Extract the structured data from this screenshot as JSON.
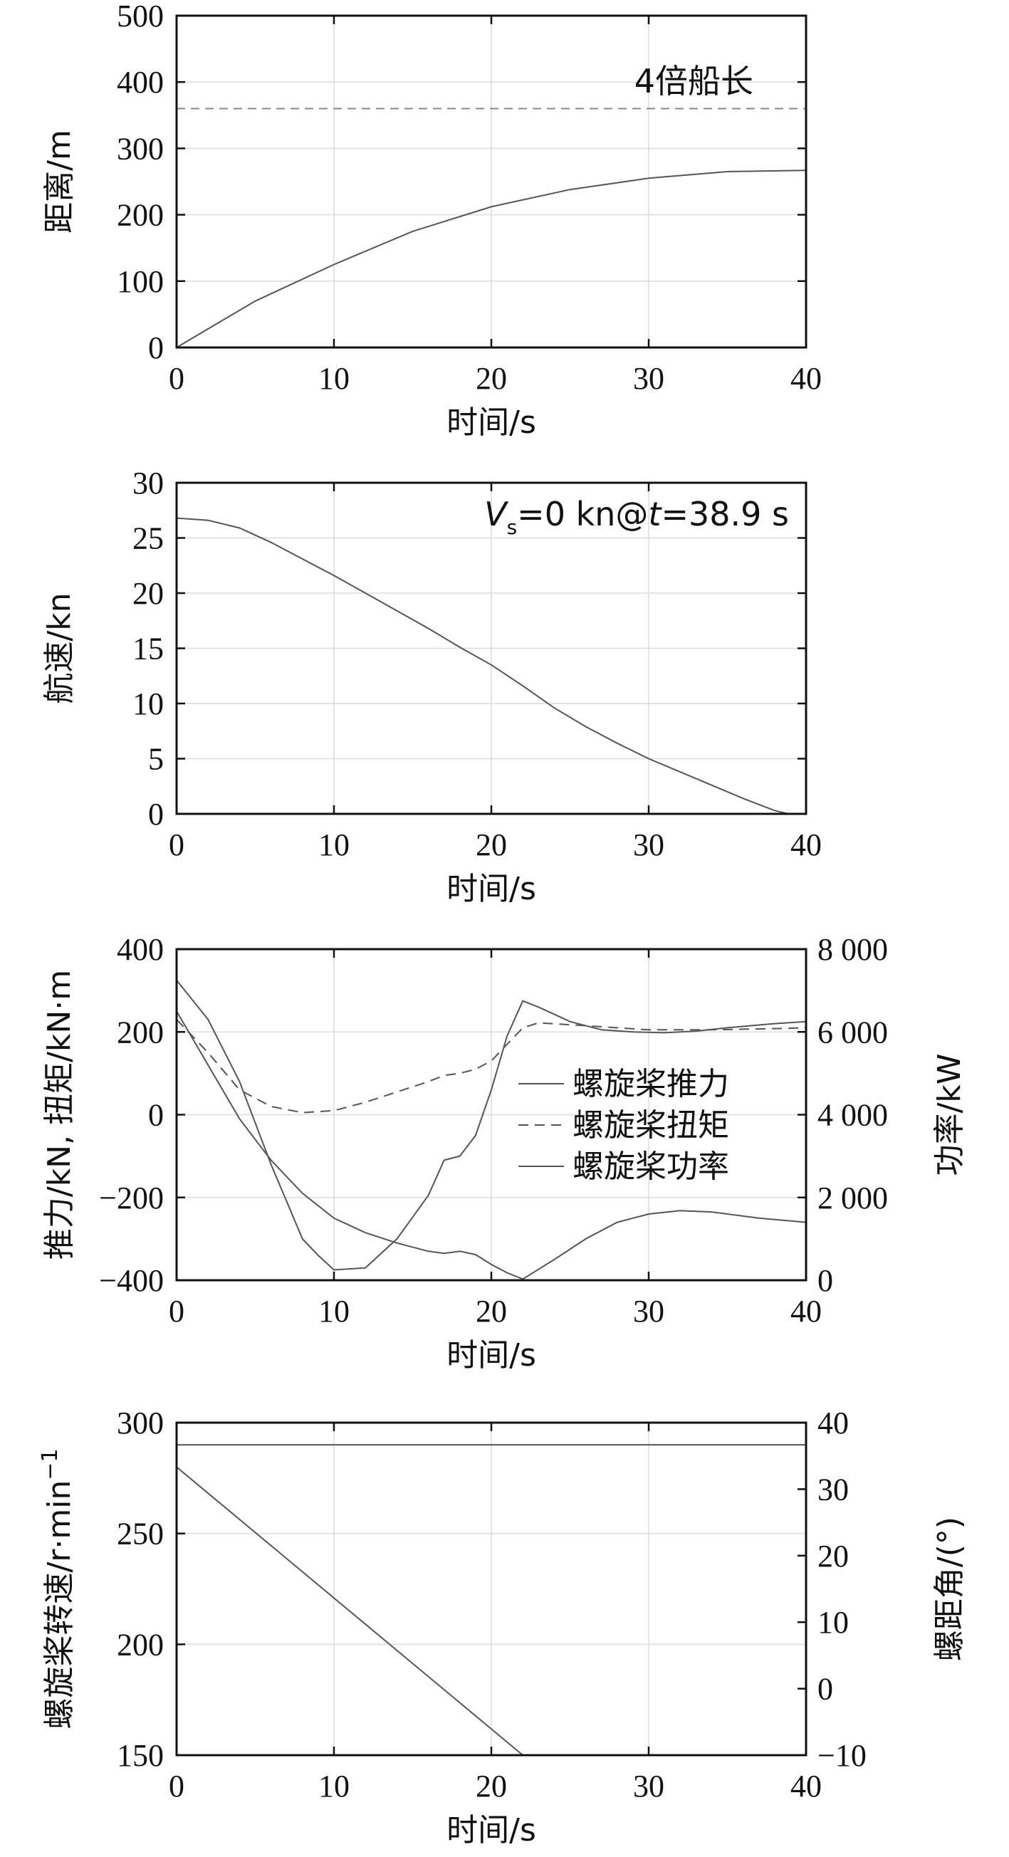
{
  "chart_data": [
    {
      "type": "line",
      "xlabel": "时间/s",
      "ylabel": "距离/m",
      "xlim": [
        0,
        40
      ],
      "ylim": [
        0,
        500
      ],
      "xticks": [
        0,
        10,
        20,
        30,
        40
      ],
      "yticks": [
        0,
        100,
        200,
        300,
        400,
        500
      ],
      "grid": true,
      "annotation": "4倍船长",
      "reference_line": {
        "y": 360,
        "style": "dashed"
      },
      "series": [
        {
          "style": "solid",
          "x": [
            0,
            5,
            10,
            15,
            20,
            25,
            30,
            35,
            40
          ],
          "y": [
            0,
            70,
            125,
            175,
            212,
            238,
            255,
            265,
            267
          ]
        }
      ]
    },
    {
      "type": "line",
      "xlabel": "时间/s",
      "ylabel": "航速/kn",
      "xlim": [
        0,
        40
      ],
      "ylim": [
        0,
        30
      ],
      "xticks": [
        0,
        10,
        20,
        30,
        40
      ],
      "yticks": [
        0,
        5,
        10,
        15,
        20,
        25,
        30
      ],
      "grid": true,
      "annotation": {
        "v": "V",
        "sub": "s",
        "rest1": "=0 kn@",
        "t": "t",
        "rest2": "=38.9 s"
      },
      "series": [
        {
          "style": "solid",
          "x": [
            0,
            2,
            4,
            6,
            8,
            10,
            12,
            14,
            16,
            18,
            20,
            22,
            24,
            26,
            28,
            30,
            32,
            34,
            36,
            38,
            38.9
          ],
          "y": [
            26.8,
            26.6,
            25.9,
            24.6,
            23.1,
            21.6,
            20.0,
            18.4,
            16.8,
            15.1,
            13.5,
            11.6,
            9.6,
            7.9,
            6.4,
            5.0,
            3.8,
            2.6,
            1.4,
            0.3,
            0
          ]
        }
      ]
    },
    {
      "type": "line",
      "xlabel": "时间/s",
      "ylabel": "推力/kN, 扭矩/kN·m",
      "y2label": "功率/kW",
      "xlim": [
        0,
        40
      ],
      "ylim": [
        -400,
        400
      ],
      "y2lim": [
        0,
        8000
      ],
      "xticks": [
        0,
        10,
        20,
        30,
        40
      ],
      "yticks": [
        -400,
        -200,
        0,
        200,
        400
      ],
      "yticklabels": [
        "−400",
        "−200",
        "0",
        "200",
        "400"
      ],
      "y2ticks": [
        0,
        2000,
        4000,
        6000,
        8000
      ],
      "y2ticklabels": [
        "0",
        "2 000",
        "4 000",
        "6 000",
        "8 000"
      ],
      "grid": true,
      "legend": "right",
      "series": [
        {
          "name": "螺旋桨推力",
          "axis": "left",
          "style": "solid",
          "x": [
            0,
            2,
            4,
            6,
            8,
            9,
            10,
            12,
            14,
            16,
            17,
            18,
            19,
            20,
            21,
            22,
            23,
            25,
            27,
            29,
            31,
            33,
            35,
            38,
            40
          ],
          "y": [
            325,
            230,
            80,
            -120,
            -300,
            -340,
            -375,
            -370,
            -300,
            -195,
            -110,
            -100,
            -50,
            60,
            190,
            275,
            260,
            225,
            205,
            200,
            198,
            202,
            210,
            220,
            225
          ]
        },
        {
          "name": "螺旋桨扭矩",
          "axis": "left",
          "style": "dashed",
          "x": [
            0,
            2,
            4,
            6,
            8,
            10,
            12,
            14,
            16,
            17,
            18,
            19,
            20,
            21,
            22,
            23,
            26,
            30,
            34,
            38,
            40
          ],
          "y": [
            230,
            150,
            60,
            20,
            5,
            10,
            30,
            55,
            80,
            95,
            100,
            110,
            130,
            170,
            210,
            222,
            215,
            205,
            205,
            208,
            210
          ]
        },
        {
          "name": "螺旋桨功率",
          "axis": "right",
          "style": "solid",
          "x": [
            0,
            2,
            4,
            6,
            8,
            10,
            12,
            14,
            16,
            17,
            18,
            19,
            20,
            21,
            22,
            24,
            26,
            28,
            30,
            32,
            34,
            37,
            40
          ],
          "y": [
            6500,
            5200,
            3900,
            2900,
            2100,
            1500,
            1150,
            900,
            700,
            650,
            700,
            620,
            380,
            180,
            30,
            500,
            1000,
            1400,
            1600,
            1680,
            1650,
            1500,
            1400
          ]
        }
      ]
    },
    {
      "type": "line",
      "xlabel": "时间/s",
      "ylabel": "螺旋桨转速/r·min",
      "ylabel_sup": "−1",
      "y2label": "螺距角/(°)",
      "xlim": [
        0,
        40
      ],
      "ylim": [
        150,
        300
      ],
      "y2lim": [
        -10,
        40
      ],
      "xticks": [
        0,
        10,
        20,
        30,
        40
      ],
      "yticks": [
        150,
        200,
        250,
        300
      ],
      "y2ticks": [
        -10,
        0,
        10,
        20,
        30,
        40
      ],
      "y2ticklabels": [
        "−10",
        "0",
        "10",
        "20",
        "30",
        "40"
      ],
      "grid": true,
      "series": [
        {
          "axis": "left",
          "style": "solid",
          "x": [
            0,
            40
          ],
          "y": [
            290,
            290
          ]
        },
        {
          "axis": "left",
          "style": "solid",
          "x": [
            0,
            22
          ],
          "y": [
            280,
            150
          ]
        }
      ]
    }
  ]
}
